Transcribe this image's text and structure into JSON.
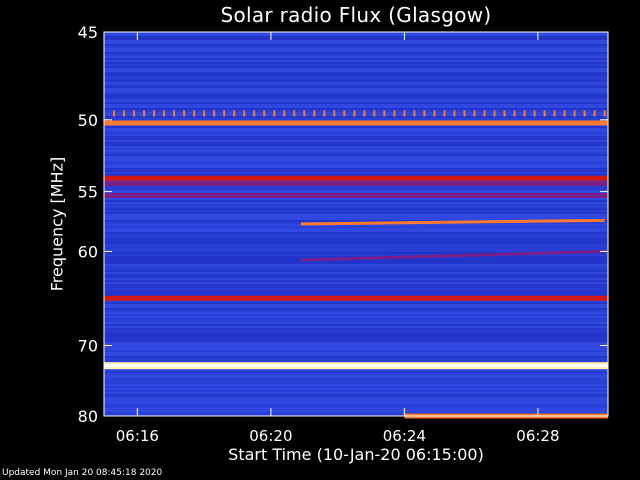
{
  "chart_data": {
    "type": "heatmap",
    "title": "Solar radio Flux (Glasgow)",
    "xlabel": "Start Time (10-Jan-20 06:15:00)",
    "ylabel": "Frequency [MHz]",
    "x_unit": "minutes after 06:15:00",
    "xlim": [
      0,
      15.1
    ],
    "ylim": [
      45,
      80
    ],
    "y_scale": "reciprocal",
    "x_ticks": [
      {
        "value": 1,
        "label": "06:16"
      },
      {
        "value": 5,
        "label": "06:20"
      },
      {
        "value": 9,
        "label": "06:24"
      },
      {
        "value": 13,
        "label": "06:28"
      }
    ],
    "y_ticks": [
      {
        "value": 45,
        "label": "45"
      },
      {
        "value": 50,
        "label": "50"
      },
      {
        "value": 55,
        "label": "55"
      },
      {
        "value": 60,
        "label": "60"
      },
      {
        "value": 70,
        "label": "70"
      },
      {
        "value": 80,
        "label": "80"
      }
    ],
    "colormap": [
      "#1a2fc8",
      "#3a50e8",
      "#7a1f8a",
      "#d01818",
      "#ff7a30",
      "#fff0b0"
    ],
    "background_color": "#2a3fd8",
    "features": [
      {
        "type": "band",
        "freq": 50.2,
        "start": 0,
        "end": 15.1,
        "level": 0.75
      },
      {
        "type": "band",
        "freq": 54.0,
        "start": 0,
        "end": 15.1,
        "level": 0.5
      },
      {
        "type": "band",
        "freq": 54.4,
        "start": 0,
        "end": 15.1,
        "level": 0.45
      },
      {
        "type": "band",
        "freq": 55.3,
        "start": 0,
        "end": 15.1,
        "level": 0.4
      },
      {
        "type": "band",
        "freq": 64.6,
        "start": 0,
        "end": 15.1,
        "level": 0.55
      },
      {
        "type": "band",
        "freq": 72.6,
        "start": 0,
        "end": 15.1,
        "level": 1.0
      },
      {
        "type": "band",
        "freq": 80.0,
        "start": 9.0,
        "end": 15.1,
        "level": 0.85
      },
      {
        "type": "drift",
        "freq_start": 57.6,
        "freq_end": 57.3,
        "start": 5.9,
        "end": 15.0,
        "level": 0.7
      },
      {
        "type": "drift",
        "freq_start": 60.8,
        "freq_end": 60.0,
        "start": 5.9,
        "end": 15.0,
        "level": 0.35
      },
      {
        "type": "pulses",
        "freq": 49.6,
        "start": 0.3,
        "end": 15.0,
        "period": 0.3,
        "level": 0.85
      }
    ]
  },
  "footer": {
    "updated": "Updated Mon Jan 20 08:45:18 2020"
  }
}
